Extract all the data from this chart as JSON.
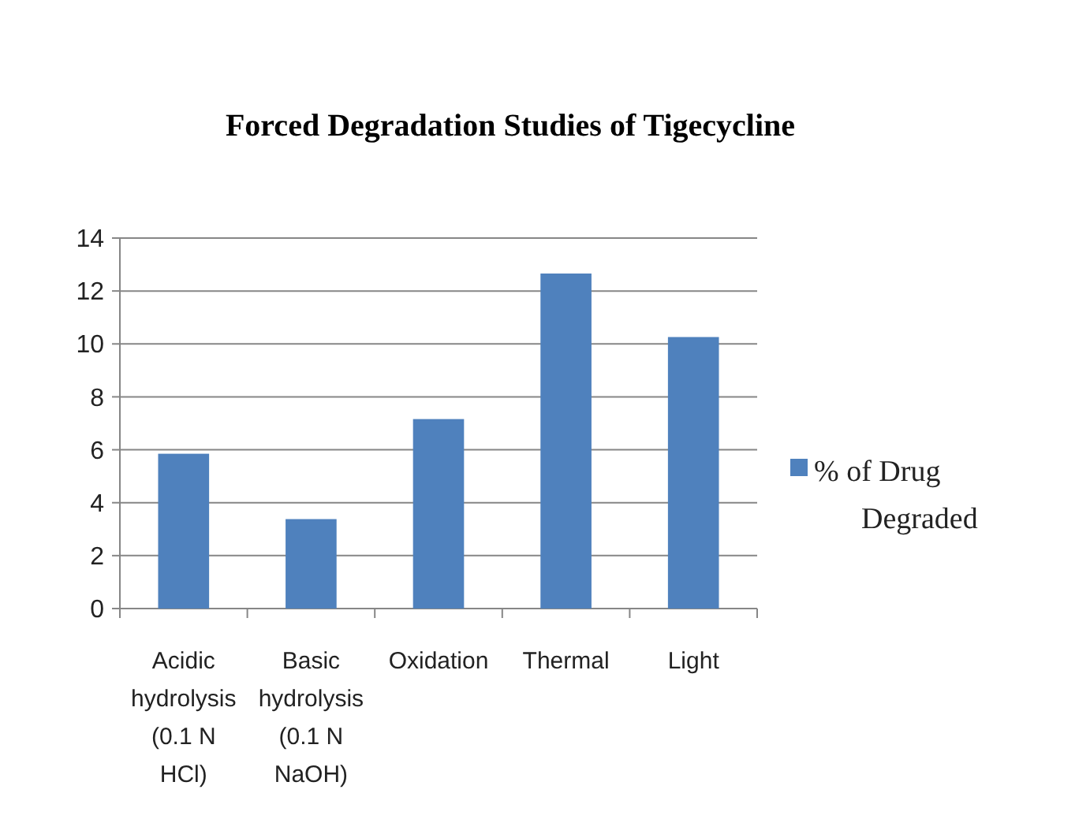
{
  "chart_data": {
    "type": "bar",
    "title": "Forced Degradation Studies of Tigecycline",
    "categories": [
      "Acidic hydrolysis (0.1 N HCl)",
      "Basic hydrolysis (0.1 N NaOH)",
      "Oxidation",
      "Thermal",
      "Light"
    ],
    "series": [
      {
        "name": "% of Drug Degraded",
        "color": "#4f81bd",
        "values": [
          5.85,
          3.38,
          7.16,
          12.66,
          10.26
        ]
      }
    ],
    "ylim": [
      0,
      14
    ],
    "yticks": [
      0,
      2,
      4,
      6,
      8,
      10,
      12,
      14
    ],
    "grid": "y",
    "legend": "right"
  }
}
